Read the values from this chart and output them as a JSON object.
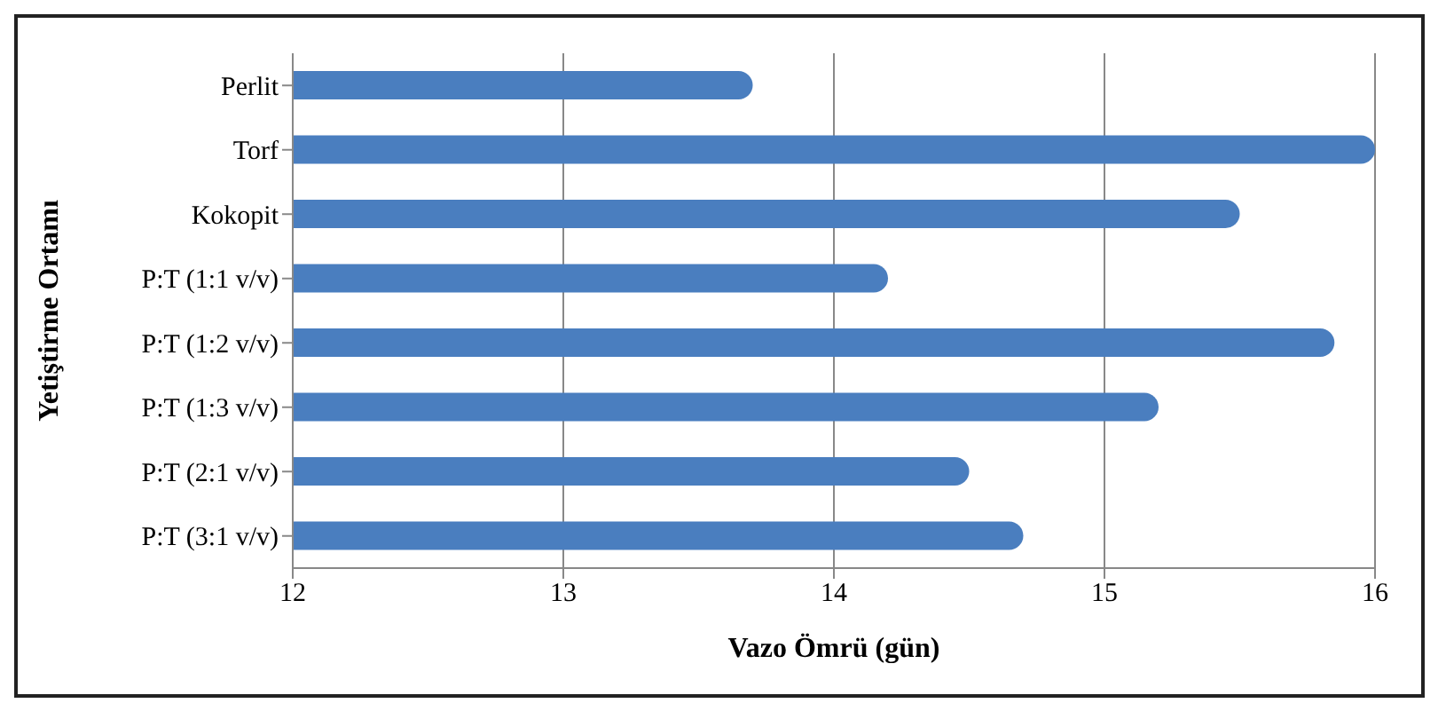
{
  "chart_data": {
    "type": "bar",
    "orientation": "horizontal",
    "xlabel": "Vazo Ömrü  (gün)",
    "ylabel": "Yetiştirme Ortamı",
    "categories": [
      "Perlit",
      "Torf",
      "Kokopit",
      "P:T (1:1 v/v)",
      "P:T (1:2 v/v)",
      "P:T (1:3 v/v)",
      "P:T (2:1 v/v)",
      "P:T (3:1 v/v)"
    ],
    "values": [
      13.7,
      16.0,
      15.5,
      14.2,
      15.85,
      15.2,
      14.5,
      14.7
    ],
    "color": "#4a7ebf",
    "xlim": [
      12,
      16
    ],
    "xticks": [
      12,
      13,
      14,
      15,
      16
    ],
    "grid": "x",
    "legend": false
  }
}
